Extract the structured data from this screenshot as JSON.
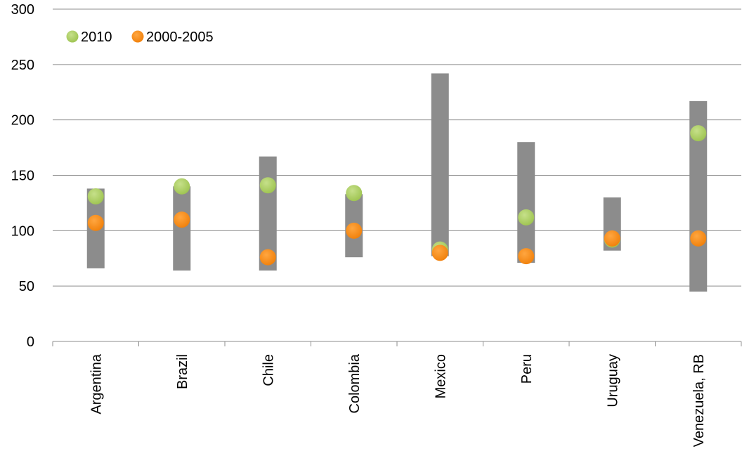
{
  "chart_data": {
    "type": "scatter",
    "categories": [
      "Argentina",
      "Brazil",
      "Chile",
      "Colombia",
      "Mexico",
      "Peru",
      "Uruguay",
      "Venezuela, RB"
    ],
    "range_bars": {
      "low": [
        66,
        64,
        64,
        76,
        77,
        71,
        82,
        45
      ],
      "high": [
        138,
        140,
        167,
        133,
        242,
        180,
        130,
        217
      ],
      "color": "#8c8c8c"
    },
    "series": [
      {
        "name": "2010",
        "values": [
          131,
          140,
          141,
          134,
          83,
          112,
          92,
          188
        ],
        "color": "#9dc34f"
      },
      {
        "name": "2000-2005",
        "values": [
          107,
          110,
          76,
          100,
          80,
          77,
          93,
          93
        ],
        "color": "#f07f09"
      }
    ],
    "y_ticks": [
      "0",
      "50",
      "100",
      "150",
      "200",
      "250",
      "300"
    ],
    "ylim": [
      0,
      300
    ],
    "grid": true,
    "legend_position": "top-left"
  }
}
